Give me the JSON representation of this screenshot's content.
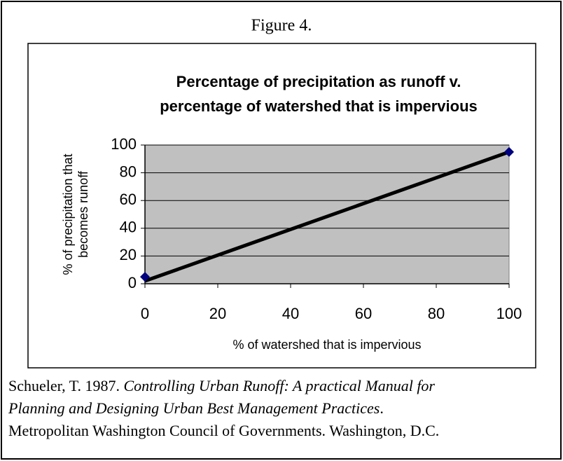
{
  "chart_data": {
    "type": "scatter",
    "caption": "Figure 4.",
    "title": [
      "Percentage of precipitation as runoff v.",
      "percentage of watershed that is impervious"
    ],
    "x_label": "% of watershed that is impervious",
    "y_label": [
      "% of precipitation that",
      "becomes runoff"
    ],
    "x": [
      0,
      100
    ],
    "values": [
      5,
      95
    ],
    "color": "#000080",
    "trendline": {
      "x": [
        0,
        100
      ],
      "values": [
        2,
        95
      ],
      "color": "#000000"
    },
    "xlim": [
      0,
      100
    ],
    "xticks": [
      0,
      20,
      40,
      60,
      80,
      100
    ],
    "ylim": [
      0,
      100
    ],
    "yticks": [
      0,
      20,
      40,
      60,
      80,
      100
    ],
    "grid": true,
    "plot_background": "#c0c0c0",
    "citation": [
      [
        {
          "text": "Schueler, T. 1987. ",
          "italic": false
        },
        {
          "text": "Controlling Urban Runoff: A practical Manual for",
          "italic": true
        }
      ],
      [
        {
          "text": "Planning and Designing Urban Best Management Practices",
          "italic": true
        },
        {
          "text": ".",
          "italic": false
        }
      ],
      [
        {
          "text": "Metropolitan Washington Council of Governments. Washington, D.C.",
          "italic": false
        }
      ]
    ]
  }
}
